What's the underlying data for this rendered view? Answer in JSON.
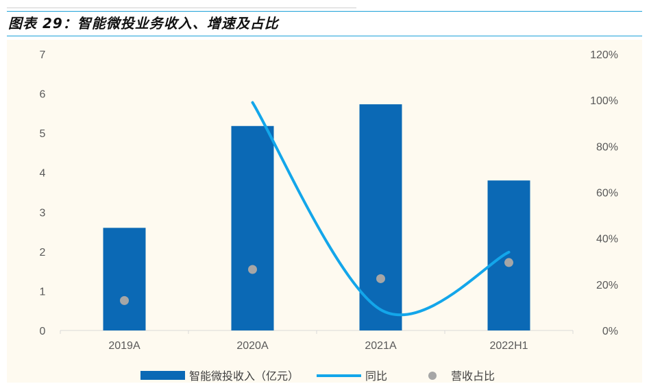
{
  "figure": {
    "title": "图表 29：智能微投业务收入、增速及占比"
  },
  "colors": {
    "bar": "#0b69b5",
    "line": "#13a6ea",
    "dot": "#a6a6a6",
    "panel": "#fefaf0"
  },
  "chart_data": {
    "type": "bar",
    "categories": [
      "2019A",
      "2020A",
      "2021A",
      "2022H1"
    ],
    "series": [
      {
        "name": "智能微投收入（亿元）",
        "type": "bar",
        "axis": "left",
        "values": [
          2.6,
          5.18,
          5.73,
          3.8
        ]
      },
      {
        "name": "同比",
        "type": "line",
        "axis": "right",
        "values": [
          null,
          0.99,
          0.09,
          0.34
        ]
      },
      {
        "name": "营收占比",
        "type": "scatter",
        "axis": "right",
        "values": [
          0.13,
          0.265,
          0.225,
          0.295
        ]
      }
    ],
    "ylim": [
      0,
      7
    ],
    "y_ticks": [
      "0",
      "1",
      "2",
      "3",
      "4",
      "5",
      "6",
      "7"
    ],
    "y2lim": [
      0,
      1.2
    ],
    "y2_ticks": [
      "0%",
      "20%",
      "40%",
      "60%",
      "80%",
      "100%",
      "120%"
    ],
    "grid": false,
    "legend": "bottom",
    "legend_labels": [
      "智能微投收入（亿元）",
      "同比",
      "营收占比"
    ]
  }
}
